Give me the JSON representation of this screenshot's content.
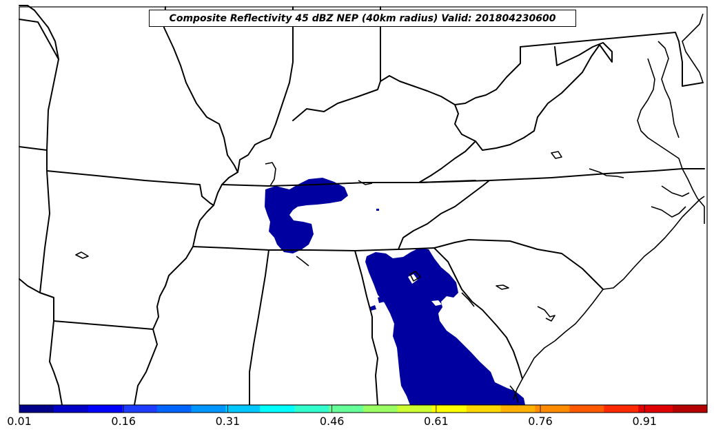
{
  "title": "Composite Reflectivity 45 dBZ NEP (40km radius) Valid: 201804230600",
  "colorbar": {
    "min": 0.01,
    "max": 1.0,
    "tick_labels": [
      "0.01",
      "0.16",
      "0.31",
      "0.46",
      "0.61",
      "0.76",
      "0.91"
    ],
    "tick_values": [
      0.01,
      0.16,
      0.31,
      0.46,
      0.61,
      0.76,
      0.91
    ],
    "colors": [
      "#00008b",
      "#0000c8",
      "#0000ff",
      "#1e3cff",
      "#0064ff",
      "#0096ff",
      "#00c8ff",
      "#00ffff",
      "#32ffcd",
      "#66ff99",
      "#9aff65",
      "#cdff32",
      "#ffff00",
      "#ffd700",
      "#ffb000",
      "#ff8c00",
      "#ff5a00",
      "#ff2a00",
      "#e00000",
      "#b40000"
    ]
  },
  "colors": {
    "probability_fill": "#0000a0",
    "boundary_lines": "#000000",
    "background": "#ffffff"
  }
}
